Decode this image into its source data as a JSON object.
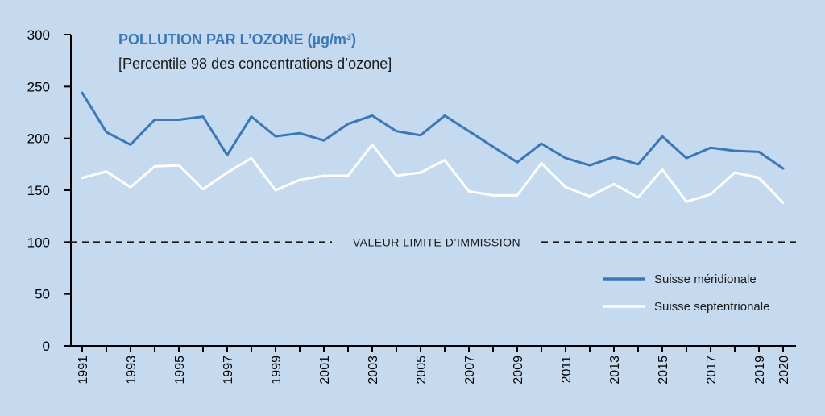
{
  "chart_data": {
    "type": "line",
    "title": "POLLUTION PAR L’OZONE (µg/m³)",
    "subtitle": "[Percentile 98 des concentrations d’ozone]",
    "x": [
      1991,
      1992,
      1993,
      1994,
      1995,
      1996,
      1997,
      1998,
      1999,
      2000,
      2001,
      2002,
      2003,
      2004,
      2005,
      2006,
      2007,
      2008,
      2009,
      2010,
      2011,
      2012,
      2013,
      2014,
      2015,
      2016,
      2017,
      2018,
      2019,
      2020
    ],
    "x_tick_labels": [
      "1991",
      "1993",
      "1995",
      "1997",
      "1999",
      "2001",
      "2003",
      "2005",
      "2007",
      "2009",
      "2011",
      "2013",
      "2015",
      "2017",
      "2019",
      "2020"
    ],
    "y_ticks": [
      0,
      50,
      100,
      150,
      200,
      250,
      300
    ],
    "ylim": [
      0,
      300
    ],
    "series": [
      {
        "name": "Suisse méridionale",
        "color": "#3b78b7",
        "values": [
          244,
          206,
          194,
          218,
          218,
          221,
          184,
          221,
          202,
          205,
          198,
          214,
          222,
          207,
          203,
          222,
          207,
          192,
          177,
          195,
          181,
          174,
          182,
          175,
          202,
          181,
          191,
          188,
          187,
          171
        ]
      },
      {
        "name": "Suisse septentrionale",
        "color": "#ffffff",
        "values": [
          162,
          168,
          153,
          173,
          174,
          151,
          167,
          181,
          150,
          160,
          164,
          164,
          194,
          164,
          167,
          179,
          149,
          145,
          145,
          176,
          153,
          144,
          156,
          143,
          170,
          139,
          146,
          167,
          162,
          138
        ]
      }
    ],
    "reference_line": {
      "value": 100,
      "label": "VALEUR LIMITE D’IMMISSION"
    },
    "legend_position": "right",
    "grid": false,
    "colors": {
      "background": "#c5d9ef",
      "title": "#3b78b7",
      "axis": "#000000"
    }
  }
}
